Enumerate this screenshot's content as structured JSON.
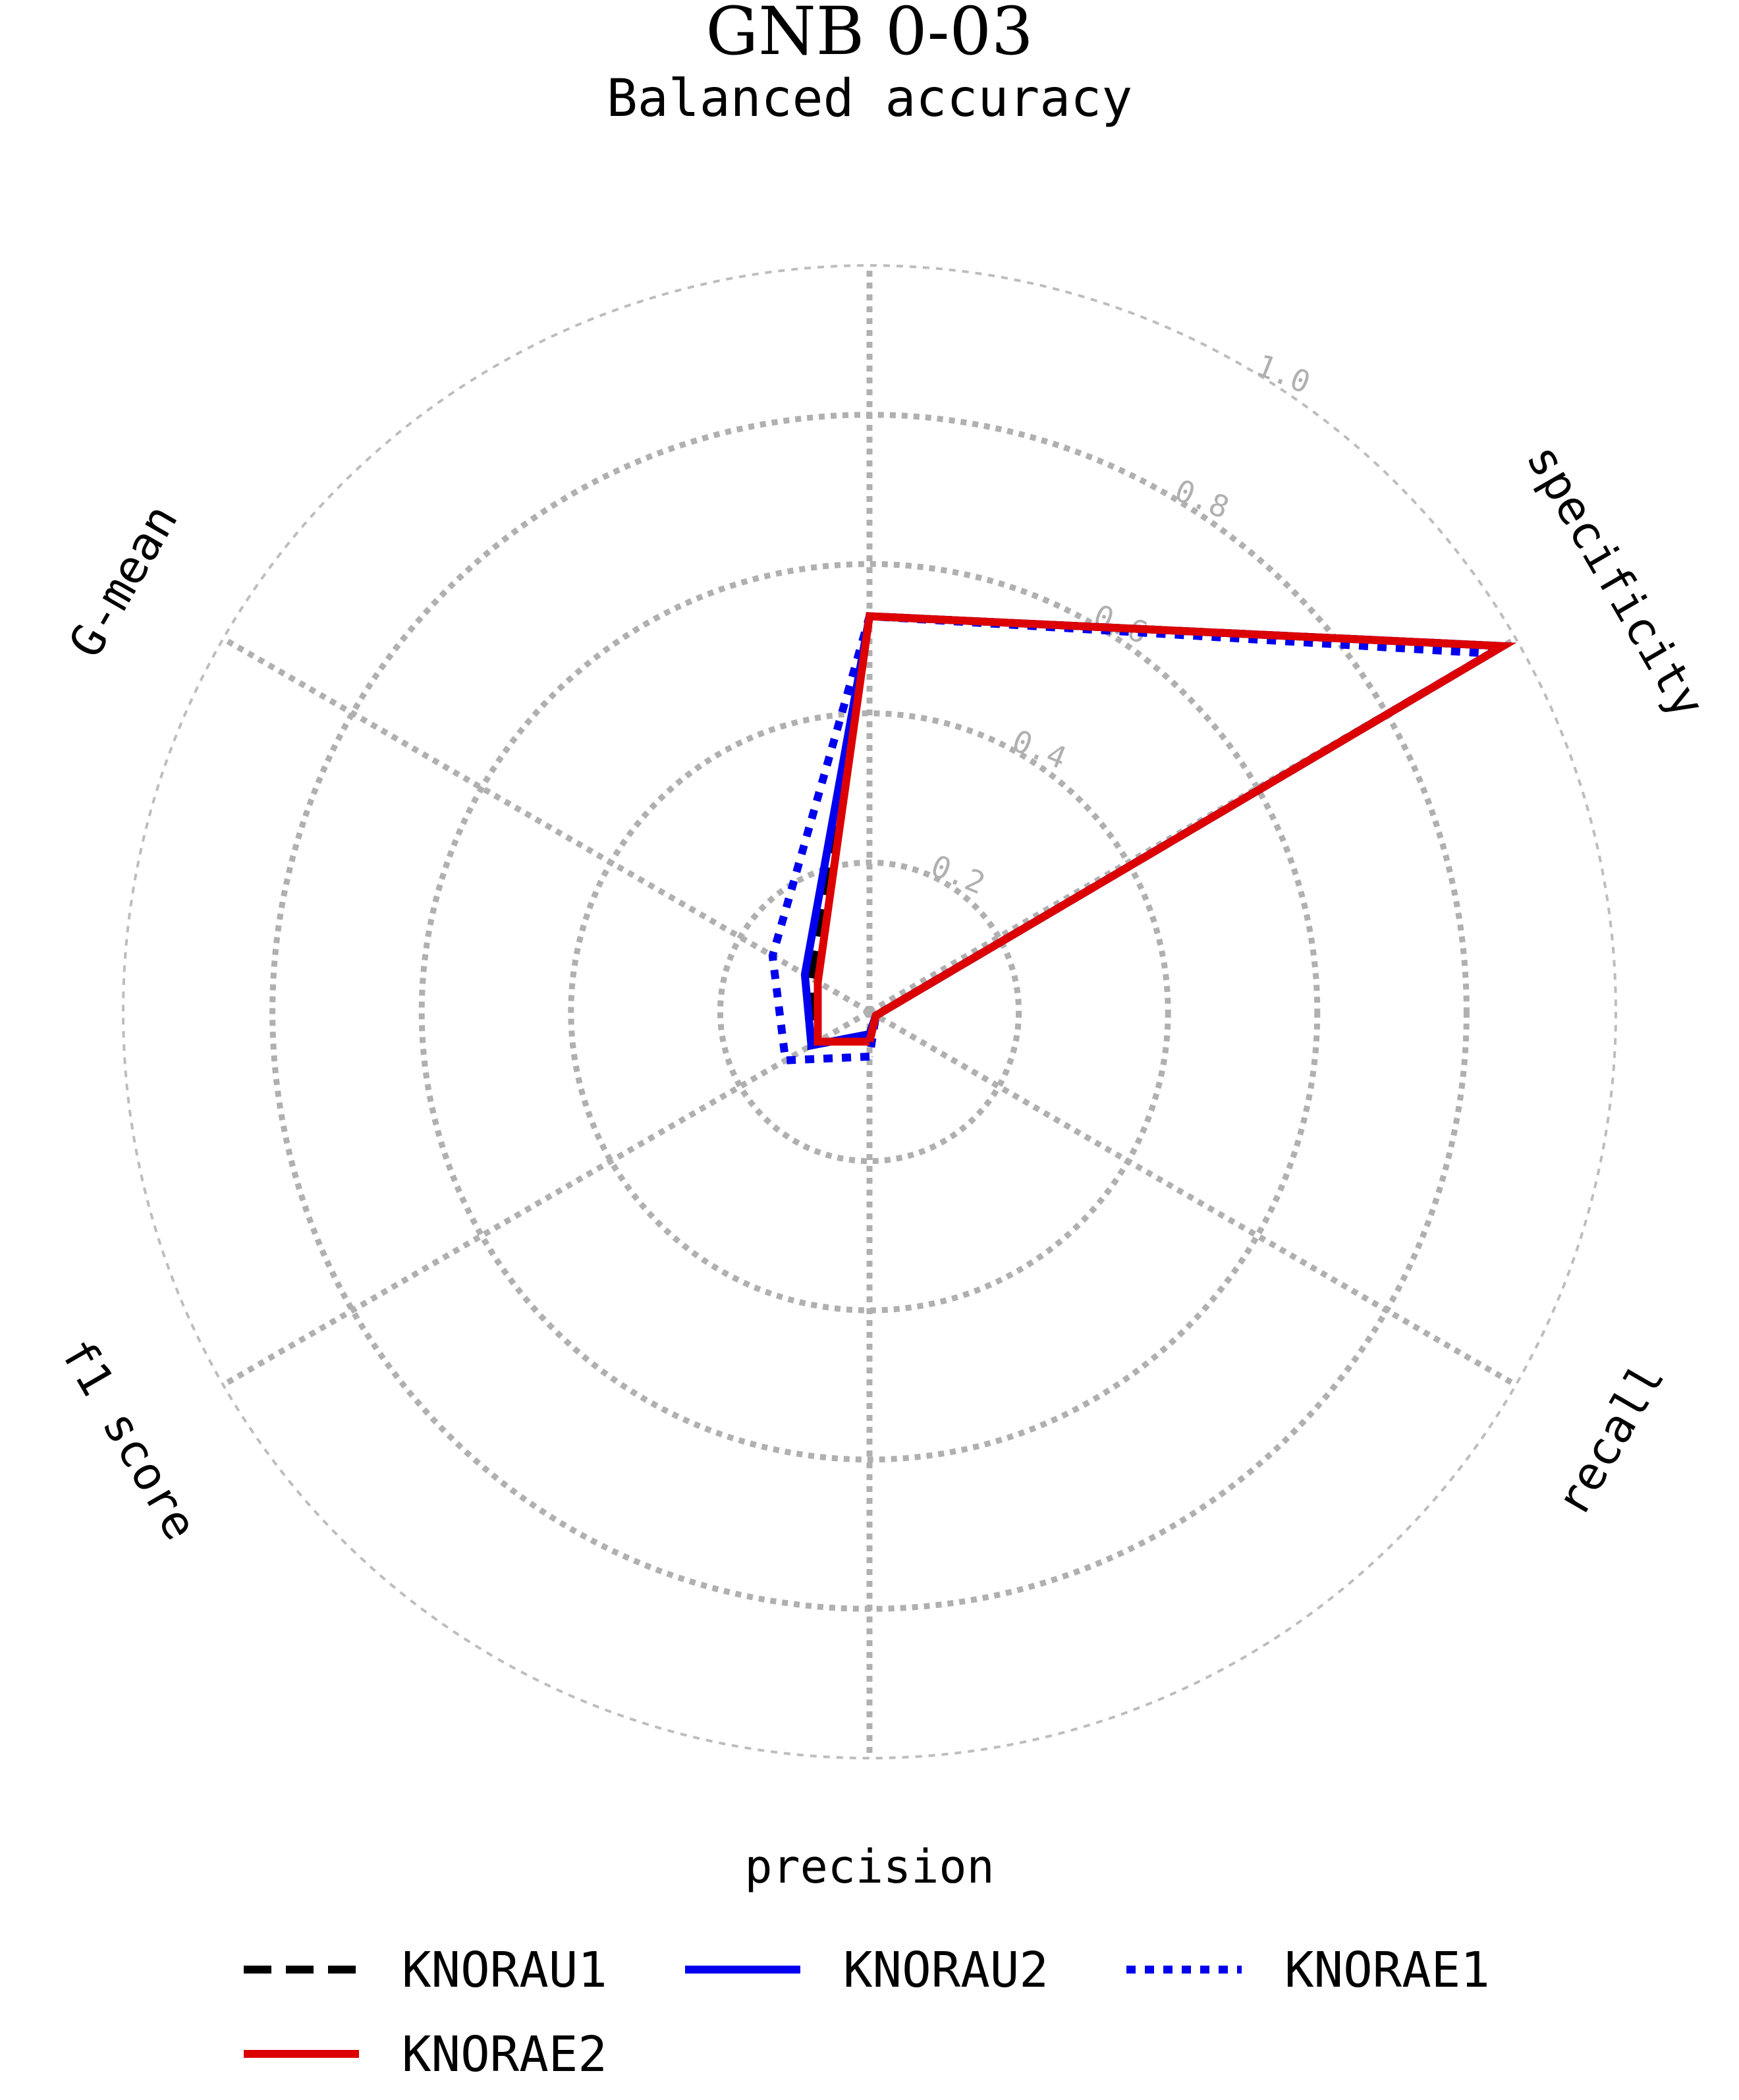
{
  "chart_data": {
    "type": "radar",
    "title": "GNB 0-03",
    "subtitle": "Balanced accuracy",
    "axes": [
      "precision",
      "f1 score",
      "G-mean",
      "Balanced accuracy",
      "specificity",
      "recall"
    ],
    "rlim": [
      0,
      1.0
    ],
    "rticks": [
      "0.2",
      "0.4",
      "0.6",
      "0.8",
      "1.0"
    ],
    "grid": true,
    "legend_position": "bottom",
    "series": [
      {
        "name": "KNORAU1",
        "color": "#000000",
        "style": "dashed",
        "values": [
          0.03,
          0.09,
          0.09,
          0.53,
          0.98,
          0.01
        ]
      },
      {
        "name": "KNORAU2",
        "color": "#0000ee",
        "style": "solid",
        "values": [
          0.03,
          0.09,
          0.1,
          0.53,
          0.98,
          0.01
        ]
      },
      {
        "name": "KNORAE1",
        "color": "#0000ee",
        "style": "dotted",
        "values": [
          0.06,
          0.13,
          0.15,
          0.53,
          0.96,
          0.01
        ]
      },
      {
        "name": "KNORAE2",
        "color": "#dd0000",
        "style": "solid",
        "values": [
          0.04,
          0.08,
          0.08,
          0.53,
          0.98,
          0.01
        ]
      }
    ]
  }
}
